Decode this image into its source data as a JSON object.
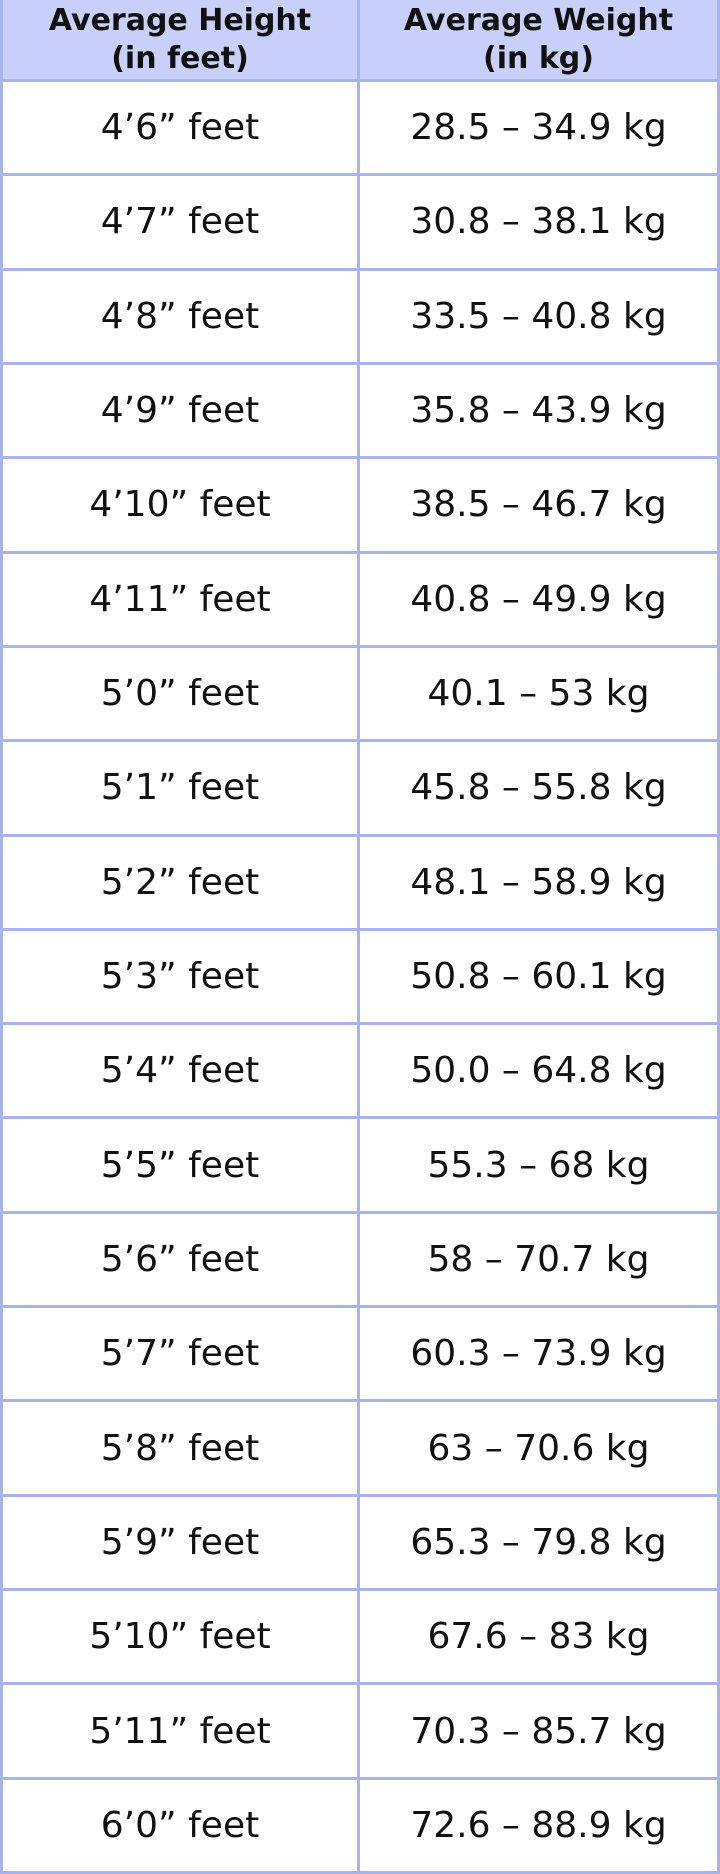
{
  "table": {
    "header": [
      [
        "Average Height",
        "(in feet)"
      ],
      [
        "Average Weight",
        "(in kg)"
      ]
    ],
    "rows": [
      [
        "4’6” feet",
        "28.5 – 34.9 kg"
      ],
      [
        "4’7” feet",
        "30.8 – 38.1 kg"
      ],
      [
        "4’8” feet",
        "33.5 – 40.8 kg"
      ],
      [
        "4’9” feet",
        "35.8 – 43.9 kg"
      ],
      [
        "4’10” feet",
        "38.5 – 46.7 kg"
      ],
      [
        "4’11” feet",
        "40.8 – 49.9 kg"
      ],
      [
        "5’0” feet",
        "40.1 – 53 kg"
      ],
      [
        "5’1” feet",
        "45.8 – 55.8 kg"
      ],
      [
        "5’2” feet",
        "48.1 – 58.9 kg"
      ],
      [
        "5’3” feet",
        "50.8 – 60.1 kg"
      ],
      [
        "5’4” feet",
        "50.0 – 64.8 kg"
      ],
      [
        "5’5” feet",
        "55.3 – 68 kg"
      ],
      [
        "5’6” feet",
        "58 – 70.7 kg"
      ],
      [
        "5’7” feet",
        "60.3 – 73.9 kg"
      ],
      [
        "5’8” feet",
        "63 – 70.6 kg"
      ],
      [
        "5’9” feet",
        "65.3 – 79.8 kg"
      ],
      [
        "5’10” feet",
        "67.6 – 83 kg"
      ],
      [
        "5’11” feet",
        "70.3 – 85.7 kg"
      ],
      [
        "6’0” feet",
        "72.6 – 88.9 kg"
      ]
    ]
  }
}
